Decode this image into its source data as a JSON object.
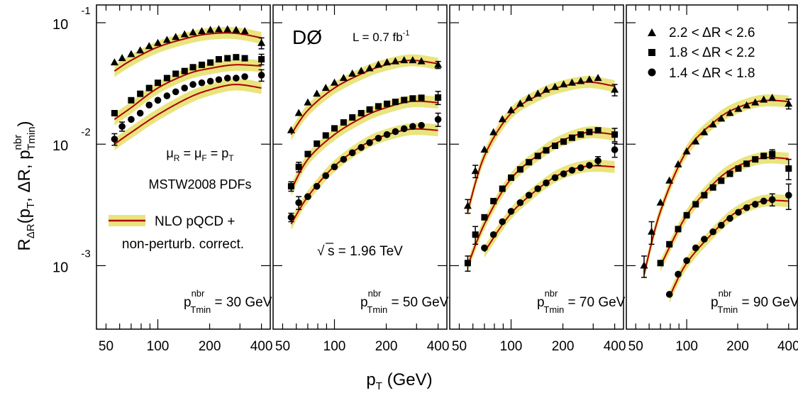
{
  "page": {
    "experiment": "DØ",
    "luminosity": "L = 0.7 fb",
    "luminosity_exp": "-1",
    "energy": "s = 1.96 TeV",
    "scale_choice": "μR = μF = pT",
    "pdf_set": "MSTW2008 PDFs",
    "theory_legend_line1": "NLO pQCD +",
    "theory_legend_line2": "non-perturb. correct."
  },
  "chart_data": {
    "type": "scatter",
    "y_axis_label": "RΔR(pT, ΔR, pnbrTmin)",
    "x_axis_label": "pT  (GeV)",
    "x_scale": "log",
    "y_scale": "log",
    "xlim": [
      44,
      450
    ],
    "ylim": [
      0.0003,
      0.14
    ],
    "x_ticks": [
      50,
      100,
      200,
      400
    ],
    "y_ticks": [
      "10^-1",
      "10^-2",
      "10^-3"
    ],
    "theory_band_color": "#e9e47e",
    "theory_line_color": "#b00000",
    "legend": [
      "2.2 < ΔR < 2.6",
      "1.8 < ΔR < 2.2",
      "1.4 < ΔR < 1.8"
    ],
    "legend_markers": [
      "triangle",
      "square",
      "circle"
    ],
    "panels": [
      {
        "label": "pnbrTmin = 30 GeV",
        "label_value": "= 30 GeV",
        "series": [
          {
            "marker": "triangle",
            "x": [
              56,
              62,
              70,
              79,
              89,
              100,
              113,
              127,
              143,
              160,
              180,
              202,
              226,
              254,
              285,
              320,
              400
            ],
            "y": [
              0.047,
              0.051,
              0.055,
              0.059,
              0.064,
              0.068,
              0.072,
              0.076,
              0.08,
              0.083,
              0.085,
              0.087,
              0.088,
              0.088,
              0.087,
              0.085,
              0.068
            ],
            "err": [
              0,
              0,
              0,
              0,
              0,
              0,
              0,
              0,
              0,
              0,
              0,
              0,
              0,
              0,
              0,
              0,
              0.007
            ],
            "theory_x": [
              56,
              70,
              100,
              150,
              200,
              280,
              400
            ],
            "theory_y": [
              0.04,
              0.049,
              0.063,
              0.075,
              0.081,
              0.082,
              0.075
            ]
          },
          {
            "marker": "square",
            "x": [
              56,
              70,
              79,
              89,
              100,
              113,
              127,
              143,
              160,
              180,
              202,
              226,
              254,
              285,
              320,
              400
            ],
            "y": [
              0.018,
              0.023,
              0.026,
              0.029,
              0.032,
              0.035,
              0.038,
              0.04,
              0.043,
              0.045,
              0.047,
              0.05,
              0.051,
              0.052,
              0.051,
              0.05
            ],
            "err": [
              0,
              0,
              0,
              0,
              0,
              0,
              0,
              0,
              0,
              0,
              0,
              0,
              0,
              0,
              0,
              0.005
            ],
            "theory_x": [
              56,
              70,
              100,
              150,
              200,
              280,
              400
            ],
            "theory_y": [
              0.016,
              0.02,
              0.029,
              0.038,
              0.042,
              0.045,
              0.044
            ]
          },
          {
            "marker": "circle",
            "x": [
              56,
              62,
              70,
              79,
              89,
              100,
              113,
              127,
              143,
              160,
              180,
              202,
              226,
              254,
              285,
              320,
              400
            ],
            "y": [
              0.011,
              0.014,
              0.016,
              0.018,
              0.021,
              0.023,
              0.025,
              0.027,
              0.029,
              0.031,
              0.032,
              0.033,
              0.034,
              0.035,
              0.035,
              0.036,
              0.037
            ],
            "err": [
              0.0012,
              0.0012,
              0,
              0,
              0,
              0,
              0,
              0,
              0,
              0,
              0,
              0,
              0,
              0,
              0,
              0,
              0.004
            ],
            "theory_x": [
              56,
              70,
              100,
              150,
              200,
              280,
              400
            ],
            "theory_y": [
              0.01,
              0.0125,
              0.0175,
              0.024,
              0.028,
              0.031,
              0.029
            ]
          }
        ]
      },
      {
        "label": "pnbrTmin = 50 GeV",
        "label_value": "= 50 GeV",
        "series": [
          {
            "marker": "triangle",
            "x": [
              56,
              62,
              70,
              79,
              89,
              100,
              113,
              127,
              143,
              160,
              180,
              202,
              226,
              254,
              285,
              320,
              400
            ],
            "y": [
              0.013,
              0.018,
              0.022,
              0.026,
              0.029,
              0.032,
              0.035,
              0.038,
              0.04,
              0.042,
              0.045,
              0.047,
              0.048,
              0.049,
              0.049,
              0.048,
              0.045
            ],
            "err": [
              0,
              0,
              0,
              0,
              0,
              0,
              0,
              0,
              0,
              0,
              0,
              0,
              0,
              0,
              0,
              0,
              0.003
            ],
            "theory_x": [
              56,
              70,
              100,
              150,
              200,
              280,
              400
            ],
            "theory_y": [
              0.012,
              0.019,
              0.029,
              0.039,
              0.045,
              0.049,
              0.046
            ]
          },
          {
            "marker": "square",
            "x": [
              56,
              62,
              70,
              79,
              89,
              100,
              113,
              127,
              143,
              160,
              180,
              202,
              226,
              254,
              285,
              320,
              400
            ],
            "y": [
              0.0045,
              0.0065,
              0.0083,
              0.0101,
              0.0118,
              0.0135,
              0.0151,
              0.0166,
              0.018,
              0.0193,
              0.0205,
              0.0215,
              0.0223,
              0.0231,
              0.0238,
              0.0241,
              0.0242
            ],
            "err": [
              0.0004,
              0.0006,
              0,
              0,
              0,
              0,
              0,
              0,
              0,
              0,
              0,
              0,
              0,
              0,
              0,
              0,
              0.003
            ],
            "theory_x": [
              56,
              70,
              100,
              150,
              200,
              280,
              400
            ],
            "theory_y": [
              0.0042,
              0.0075,
              0.012,
              0.017,
              0.02,
              0.0225,
              0.022
            ]
          },
          {
            "marker": "circle",
            "x": [
              56,
              62,
              70,
              79,
              89,
              100,
              113,
              127,
              143,
              160,
              180,
              202,
              226,
              254,
              285,
              320,
              400
            ],
            "y": [
              0.0025,
              0.0033,
              0.0037,
              0.0045,
              0.0055,
              0.0065,
              0.0075,
              0.0085,
              0.0094,
              0.0103,
              0.0112,
              0.012,
              0.0127,
              0.0134,
              0.014,
              0.0143,
              0.016
            ],
            "err": [
              0.0002,
              0.0004,
              0,
              0,
              0,
              0,
              0,
              0,
              0,
              0,
              0,
              0,
              0,
              0,
              0,
              0,
              0.002
            ],
            "theory_x": [
              56,
              70,
              100,
              150,
              200,
              280,
              400
            ],
            "theory_y": [
              0.0022,
              0.0037,
              0.0066,
              0.01,
              0.0119,
              0.0133,
              0.013
            ]
          }
        ]
      },
      {
        "label": "pnbrTmin = 70 GeV",
        "label_value": "= 70 GeV",
        "series": [
          {
            "marker": "triangle",
            "x": [
              56,
              62,
              70,
              79,
              89,
              100,
              113,
              127,
              143,
              160,
              180,
              202,
              226,
              254,
              285,
              320,
              400
            ],
            "y": [
              0.0031,
              0.006,
              0.009,
              0.0125,
              0.016,
              0.019,
              0.0215,
              0.024,
              0.026,
              0.028,
              0.0295,
              0.031,
              0.032,
              0.033,
              0.034,
              0.035,
              0.028
            ],
            "err": [
              0.0004,
              0.0007,
              0,
              0,
              0,
              0,
              0,
              0,
              0,
              0,
              0,
              0,
              0,
              0,
              0,
              0,
              0.003
            ],
            "theory_x": [
              56,
              70,
              100,
              150,
              200,
              280,
              400
            ],
            "theory_y": [
              0.0028,
              0.008,
              0.018,
              0.026,
              0.03,
              0.0325,
              0.03
            ]
          },
          {
            "marker": "square",
            "x": [
              56,
              62,
              70,
              79,
              89,
              100,
              113,
              127,
              143,
              160,
              180,
              202,
              226,
              254,
              285,
              320,
              400
            ],
            "y": [
              0.00105,
              0.0018,
              0.0025,
              0.0034,
              0.0043,
              0.0053,
              0.0062,
              0.0071,
              0.008,
              0.0089,
              0.0097,
              0.0105,
              0.0113,
              0.012,
              0.0126,
              0.013,
              0.012
            ],
            "err": [
              0.00015,
              0.0003,
              0,
              0,
              0,
              0,
              0,
              0,
              0,
              0,
              0,
              0,
              0,
              0,
              0,
              0,
              0.0015
            ],
            "theory_x": [
              56,
              70,
              100,
              150,
              200,
              280,
              400
            ],
            "theory_y": [
              0.001,
              0.0022,
              0.0052,
              0.0085,
              0.0108,
              0.0125,
              0.012
            ]
          },
          {
            "marker": "circle",
            "x": [
              70,
              79,
              89,
              100,
              113,
              127,
              143,
              160,
              180,
              202,
              226,
              254,
              285,
              320,
              400
            ],
            "y": [
              0.0014,
              0.0018,
              0.0023,
              0.0028,
              0.0033,
              0.0038,
              0.0043,
              0.0048,
              0.0053,
              0.0057,
              0.0061,
              0.0064,
              0.0067,
              0.0073,
              0.009
            ],
            "err": [
              0,
              0,
              0,
              0,
              0,
              0,
              0,
              0,
              0,
              0,
              0,
              0,
              0,
              0.0006,
              0.0012
            ],
            "theory_x": [
              70,
              100,
              150,
              200,
              280,
              400
            ],
            "theory_y": [
              0.0013,
              0.0027,
              0.0045,
              0.0058,
              0.0066,
              0.0065
            ]
          }
        ]
      },
      {
        "label": "pnbrTmin = 90 GeV",
        "label_value": "= 90 GeV",
        "series": [
          {
            "marker": "triangle",
            "x": [
              56,
              62,
              70,
              79,
              89,
              100,
              113,
              127,
              143,
              160,
              180,
              202,
              226,
              254,
              285,
              320,
              400
            ],
            "y": [
              0.001,
              0.0019,
              0.0033,
              0.005,
              0.0068,
              0.0087,
              0.0105,
              0.0125,
              0.0145,
              0.0162,
              0.018,
              0.0195,
              0.0208,
              0.022,
              0.0232,
              0.024,
              0.0215
            ],
            "err": [
              0.0002,
              0.0004,
              0,
              0,
              0,
              0,
              0,
              0,
              0,
              0,
              0,
              0,
              0,
              0,
              0,
              0,
              0.002
            ],
            "theory_x": [
              56,
              70,
              100,
              150,
              200,
              280,
              400
            ],
            "theory_y": [
              0.00085,
              0.0028,
              0.0088,
              0.0158,
              0.02,
              0.0228,
              0.0225
            ]
          },
          {
            "marker": "square",
            "x": [
              70,
              79,
              89,
              100,
              113,
              127,
              143,
              160,
              180,
              202,
              226,
              254,
              285,
              320,
              400
            ],
            "y": [
              0.00105,
              0.0015,
              0.002,
              0.0026,
              0.0032,
              0.0038,
              0.0044,
              0.005,
              0.0057,
              0.0063,
              0.0069,
              0.0075,
              0.008,
              0.0083,
              0.0063
            ],
            "err": [
              0,
              0,
              0,
              0,
              0,
              0,
              0,
              0,
              0,
              0,
              0,
              0,
              0,
              0.0007,
              0.0012
            ],
            "theory_x": [
              70,
              100,
              150,
              200,
              280,
              400
            ],
            "theory_y": [
              0.001,
              0.0026,
              0.005,
              0.0066,
              0.0077,
              0.0076
            ]
          },
          {
            "marker": "circle",
            "x": [
              79,
              89,
              100,
              113,
              127,
              143,
              160,
              180,
              202,
              226,
              254,
              285,
              320,
              400
            ],
            "y": [
              0.00058,
              0.00085,
              0.0011,
              0.0014,
              0.00165,
              0.0019,
              0.00215,
              0.00245,
              0.00275,
              0.003,
              0.0032,
              0.0034,
              0.0035,
              0.0038
            ],
            "err": [
              0,
              0,
              0,
              0,
              0,
              0,
              0,
              0,
              0,
              0,
              0,
              0,
              0.0004,
              0.0009
            ],
            "theory_x": [
              79,
              100,
              150,
              200,
              280,
              400
            ],
            "theory_y": [
              0.00055,
              0.00105,
              0.002,
              0.0028,
              0.0034,
              0.0034
            ]
          }
        ]
      }
    ]
  }
}
